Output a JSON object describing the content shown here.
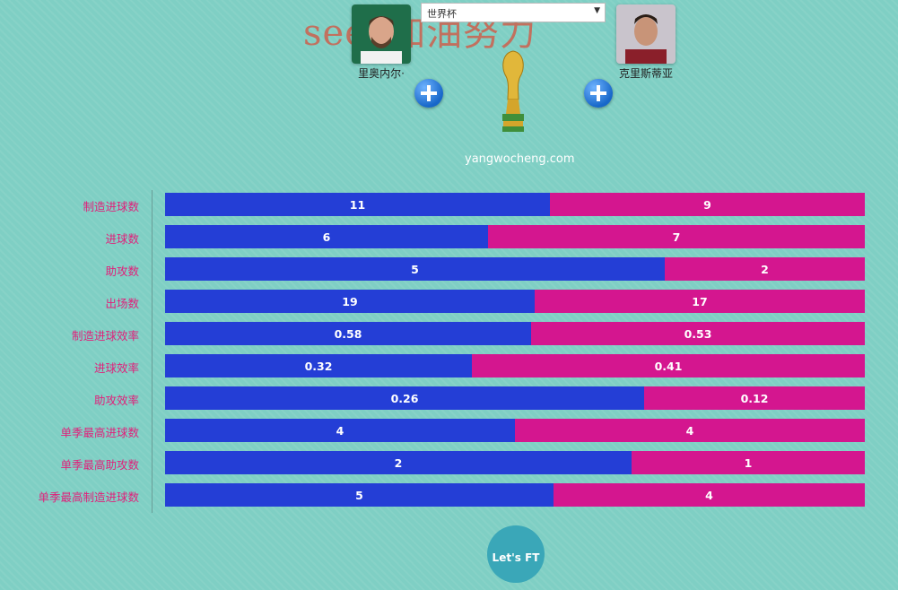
{
  "watermark": "seek加油努力",
  "competition_select": {
    "value": "世界杯"
  },
  "player_left": {
    "name": "里奥内尔·"
  },
  "player_right": {
    "name": "克里斯蒂亚"
  },
  "site_text": "yangwocheng.com",
  "logo_text": "Let's FT",
  "colors": {
    "left_bar": "#243ed6",
    "right_bar": "#d4168f",
    "label": "#e0207a",
    "background": "#7fcfc4"
  },
  "chart_data": {
    "type": "bar",
    "orientation": "horizontal-stacked-100%",
    "categories": [
      "制造进球数",
      "进球数",
      "助攻数",
      "出场数",
      "制造进球效率",
      "进球效率",
      "助攻效率",
      "单季最高进球数",
      "单季最高助攻数",
      "单季最高制造进球数"
    ],
    "series": [
      {
        "values": [
          "11",
          "6",
          "5",
          "19",
          "0.58",
          "0.32",
          "0.26",
          "4",
          "2",
          "5"
        ]
      },
      {
        "values": [
          "9",
          "7",
          "2",
          "17",
          "0.53",
          "0.41",
          "0.12",
          "4",
          "1",
          "4"
        ]
      }
    ]
  }
}
